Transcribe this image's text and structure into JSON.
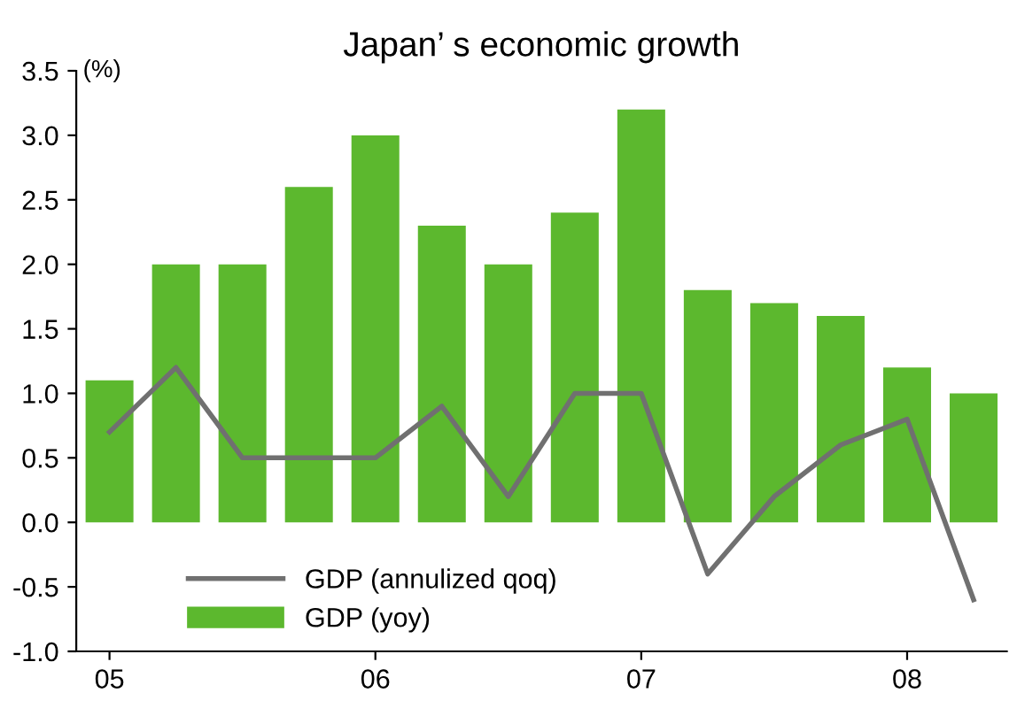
{
  "chart_data": {
    "type": "bar",
    "title": "Japan’ s economic growth",
    "ylabel": "(%)",
    "categories": [
      "05",
      null,
      null,
      null,
      "06",
      null,
      null,
      null,
      "07",
      null,
      null,
      null,
      "08",
      null
    ],
    "series": [
      {
        "name": "GDP (annulized qoq)",
        "type": "line",
        "color": "#707070",
        "values": [
          0.7,
          1.2,
          0.5,
          0.5,
          0.5,
          0.9,
          0.2,
          1.0,
          1.0,
          -0.4,
          0.2,
          0.6,
          0.8,
          -0.6
        ]
      },
      {
        "name": "GDP (yoy)",
        "color": "#5cb82e",
        "values": [
          1.1,
          2.0,
          2.0,
          2.6,
          3.0,
          2.3,
          2.0,
          2.4,
          3.2,
          1.8,
          1.7,
          1.6,
          1.2,
          1.0
        ]
      }
    ],
    "ylim": [
      -1.0,
      3.5
    ],
    "yticks": [
      {
        "value": -1.0,
        "label": "-1.0"
      },
      {
        "value": -0.5,
        "label": "-0.5"
      },
      {
        "value": 0.0,
        "label": "0.0"
      },
      {
        "value": 0.5,
        "label": "0.5"
      },
      {
        "value": 1.0,
        "label": "1.0"
      },
      {
        "value": 1.5,
        "label": "1.5"
      },
      {
        "value": 2.0,
        "label": "2.0"
      },
      {
        "value": 2.5,
        "label": "2.5"
      },
      {
        "value": 3.0,
        "label": "3.0"
      },
      {
        "value": 3.5,
        "label": "3.5"
      }
    ],
    "grid": false,
    "legend": "bottom left",
    "marker": "none",
    "line_style": "solid"
  }
}
